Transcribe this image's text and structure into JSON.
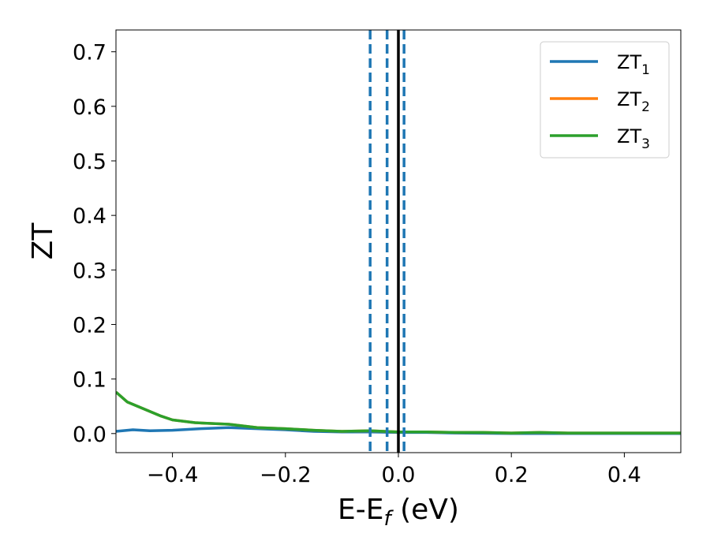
{
  "chart_data": {
    "type": "line",
    "xlabel_main": "E-E",
    "xlabel_sub": "f",
    "xlabel_unit": " (eV)",
    "ylabel": "ZT",
    "xlim": [
      -0.5,
      0.5
    ],
    "ylim": [
      -0.035,
      0.74
    ],
    "xticks": [
      -0.4,
      -0.2,
      0.0,
      0.2,
      0.4
    ],
    "xtick_labels": [
      "−0.4",
      "−0.2",
      "0.0",
      "0.2",
      "0.4"
    ],
    "yticks": [
      0.0,
      0.1,
      0.2,
      0.3,
      0.4,
      0.5,
      0.6,
      0.7
    ],
    "ytick_labels": [
      "0.0",
      "0.1",
      "0.2",
      "0.3",
      "0.4",
      "0.5",
      "0.6",
      "0.7"
    ],
    "grid": false,
    "legend_position": "top-right",
    "series": [
      {
        "name": "ZT",
        "sub": "1",
        "color": "#1f77b4",
        "points": [
          [
            -0.5,
            0.004
          ],
          [
            -0.47,
            0.007
          ],
          [
            -0.44,
            0.005
          ],
          [
            -0.4,
            0.006
          ],
          [
            -0.35,
            0.009
          ],
          [
            -0.3,
            0.011
          ],
          [
            -0.25,
            0.009
          ],
          [
            -0.2,
            0.007
          ],
          [
            -0.15,
            0.004
          ],
          [
            -0.1,
            0.003
          ],
          [
            -0.05,
            0.003
          ],
          [
            0.0,
            0.002
          ],
          [
            0.05,
            0.002
          ],
          [
            0.1,
            0.001
          ],
          [
            0.2,
            0.0
          ],
          [
            0.3,
            0.0
          ],
          [
            0.4,
            0.0
          ],
          [
            0.5,
            0.0
          ]
        ]
      },
      {
        "name": "ZT",
        "sub": "2",
        "color": "#ff7f0e",
        "points": [
          [
            -0.5,
            0.076
          ],
          [
            -0.48,
            0.058
          ],
          [
            -0.45,
            0.045
          ],
          [
            -0.42,
            0.032
          ],
          [
            -0.4,
            0.025
          ],
          [
            -0.36,
            0.02
          ],
          [
            -0.3,
            0.017
          ],
          [
            -0.25,
            0.011
          ],
          [
            -0.2,
            0.009
          ],
          [
            -0.15,
            0.006
          ],
          [
            -0.1,
            0.004
          ],
          [
            -0.05,
            0.005
          ],
          [
            0.0,
            0.003
          ],
          [
            0.05,
            0.003
          ],
          [
            0.1,
            0.002
          ],
          [
            0.15,
            0.002
          ],
          [
            0.2,
            0.001
          ],
          [
            0.25,
            0.002
          ],
          [
            0.3,
            0.001
          ],
          [
            0.35,
            0.001
          ],
          [
            0.4,
            0.001
          ],
          [
            0.5,
            0.001
          ]
        ]
      },
      {
        "name": "ZT",
        "sub": "3",
        "color": "#2ca02c",
        "points": [
          [
            -0.5,
            0.076
          ],
          [
            -0.48,
            0.058
          ],
          [
            -0.45,
            0.045
          ],
          [
            -0.42,
            0.032
          ],
          [
            -0.4,
            0.025
          ],
          [
            -0.36,
            0.02
          ],
          [
            -0.3,
            0.017
          ],
          [
            -0.25,
            0.011
          ],
          [
            -0.2,
            0.009
          ],
          [
            -0.15,
            0.006
          ],
          [
            -0.1,
            0.004
          ],
          [
            -0.05,
            0.005
          ],
          [
            0.0,
            0.003
          ],
          [
            0.05,
            0.003
          ],
          [
            0.1,
            0.002
          ],
          [
            0.15,
            0.002
          ],
          [
            0.2,
            0.001
          ],
          [
            0.25,
            0.002
          ],
          [
            0.3,
            0.001
          ],
          [
            0.35,
            0.001
          ],
          [
            0.4,
            0.001
          ],
          [
            0.5,
            0.001
          ]
        ]
      }
    ],
    "vlines": [
      {
        "x": -0.05,
        "color": "#1f77b4",
        "style": "dashed"
      },
      {
        "x": -0.02,
        "color": "#1f77b4",
        "style": "dashed"
      },
      {
        "x": 0.01,
        "color": "#1f77b4",
        "style": "dashed"
      },
      {
        "x": 0.0,
        "color": "#000000",
        "style": "solid"
      }
    ]
  }
}
